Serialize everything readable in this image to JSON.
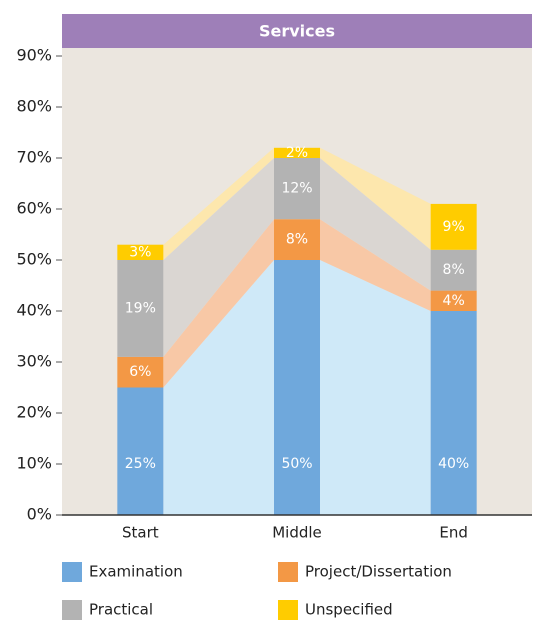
{
  "chart_data": {
    "type": "stacked_bar_area",
    "title": "Services",
    "categories": [
      "Start",
      "Middle",
      "End"
    ],
    "series": [
      {
        "name": "Examination",
        "color": "#6fa8dc",
        "area_color": "#cfe9f8",
        "values": [
          25,
          50,
          40
        ],
        "value_labels": [
          "25%",
          "50%",
          "40%"
        ]
      },
      {
        "name": "Project/Dissertation",
        "color": "#f39845",
        "area_color": "#f8c8a6",
        "values": [
          6,
          8,
          4
        ],
        "value_labels": [
          "6%",
          "8%",
          "4%"
        ]
      },
      {
        "name": "Practical",
        "color": "#b3b3b3",
        "area_color": "#dad6d2",
        "values": [
          19,
          12,
          8
        ],
        "value_labels": [
          "19%",
          "12%",
          "8%"
        ]
      },
      {
        "name": "Unspecified",
        "color": "#ffcc00",
        "area_color": "#fde7ad",
        "values": [
          3,
          2,
          9
        ],
        "value_labels": [
          "3%",
          "2%",
          "9%"
        ]
      }
    ],
    "ylim": [
      0,
      90
    ],
    "yticks": [
      {
        "value": 0,
        "label": "0%"
      },
      {
        "value": 10,
        "label": "10%"
      },
      {
        "value": 20,
        "label": "20%"
      },
      {
        "value": 30,
        "label": "30%"
      },
      {
        "value": 40,
        "label": "40%"
      },
      {
        "value": 50,
        "label": "50%"
      },
      {
        "value": 60,
        "label": "60%"
      },
      {
        "value": 70,
        "label": "70%"
      },
      {
        "value": 80,
        "label": "80%"
      },
      {
        "value": 90,
        "label": "90%"
      }
    ]
  }
}
